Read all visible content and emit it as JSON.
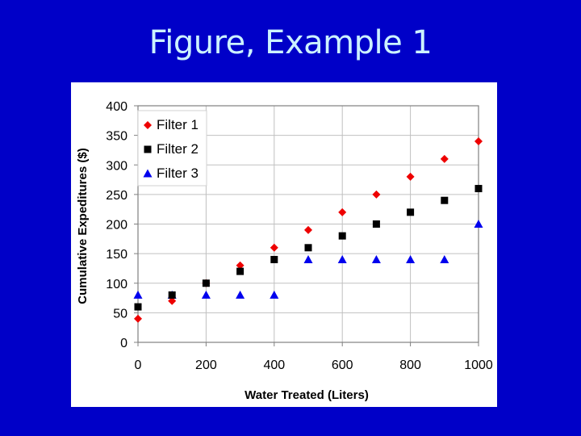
{
  "slide": {
    "title": "Figure, Example 1",
    "background_color": "#0000c8",
    "title_color": "#ccf2ff"
  },
  "chart_data": {
    "type": "scatter",
    "title": "",
    "xlabel": "Water Treated (Liters)",
    "ylabel": "Cumulative Expeditures ($)",
    "xlim": [
      0,
      1000
    ],
    "ylim": [
      0,
      400
    ],
    "x_ticks": [
      0,
      200,
      400,
      600,
      800,
      1000
    ],
    "y_ticks": [
      0,
      50,
      100,
      150,
      200,
      250,
      300,
      350,
      400
    ],
    "grid": true,
    "legend_position": "upper-left-inside",
    "x": [
      0,
      100,
      200,
      300,
      400,
      500,
      600,
      700,
      800,
      900,
      1000
    ],
    "series": [
      {
        "name": "Filter 1",
        "marker": "diamond",
        "color": "#ee0000",
        "values": [
          40,
          70,
          100,
          130,
          160,
          190,
          220,
          250,
          280,
          310,
          340
        ]
      },
      {
        "name": "Filter 2",
        "marker": "square",
        "color": "#000000",
        "values": [
          60,
          80,
          100,
          120,
          140,
          160,
          180,
          200,
          220,
          240,
          260
        ]
      },
      {
        "name": "Filter 3",
        "marker": "triangle",
        "color": "#0000ee",
        "values": [
          80,
          80,
          80,
          80,
          80,
          140,
          140,
          140,
          140,
          140,
          200
        ]
      }
    ]
  }
}
